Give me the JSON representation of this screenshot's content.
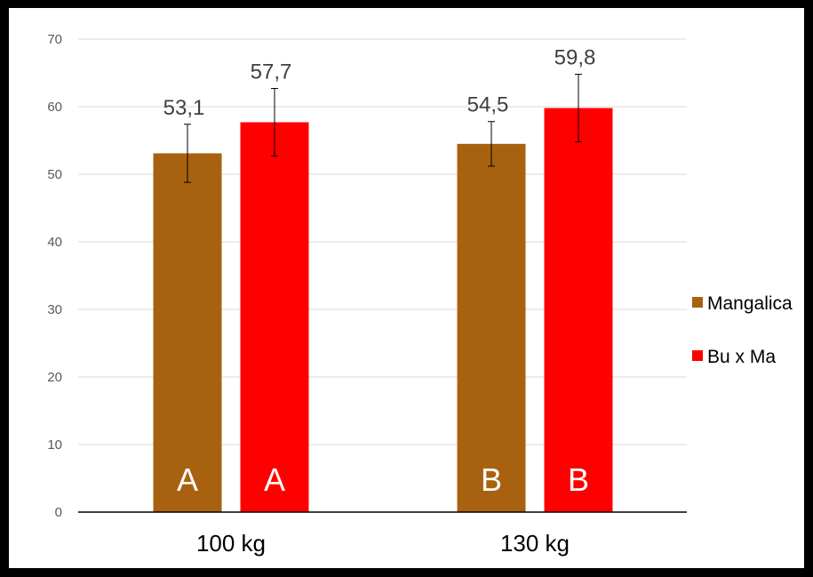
{
  "chart_data": {
    "type": "bar",
    "title": "",
    "xlabel": "",
    "ylabel": "",
    "ylim": [
      0,
      70
    ],
    "yticks": [
      0,
      10,
      20,
      30,
      40,
      50,
      60,
      70
    ],
    "grid": true,
    "legend_position": "right",
    "categories": [
      "100 kg",
      "130 kg"
    ],
    "series": [
      {
        "name": "Mangalica",
        "color": "#A8620F",
        "values": [
          53.1,
          54.5
        ],
        "value_labels": [
          "53,1",
          "54,5"
        ],
        "error": [
          4.3,
          3.3
        ],
        "letters": [
          "A",
          "B"
        ]
      },
      {
        "name": "Bu x Ma",
        "color": "#FF0000",
        "values": [
          57.7,
          59.8
        ],
        "value_labels": [
          "57,7",
          "59,8"
        ],
        "error": [
          5.0,
          5.0
        ],
        "letters": [
          "A",
          "B"
        ]
      }
    ]
  }
}
